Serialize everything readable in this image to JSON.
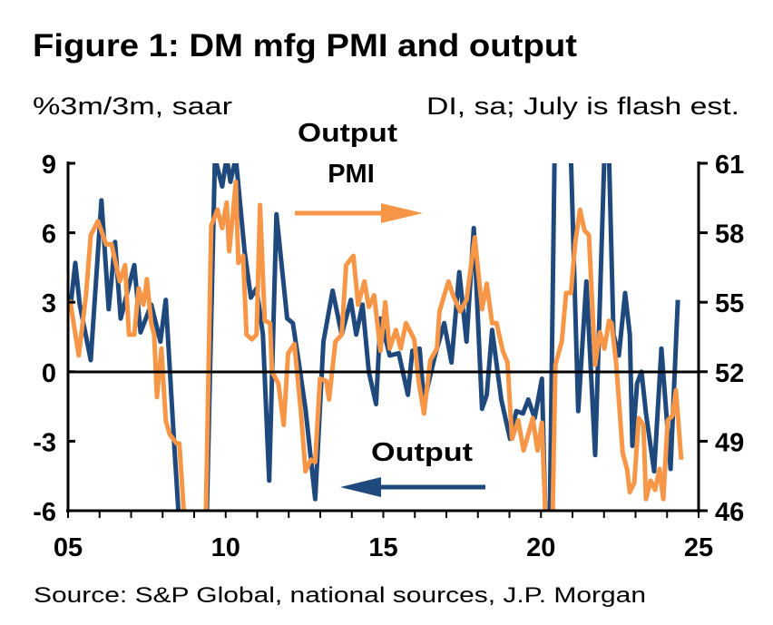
{
  "chart_data": {
    "type": "line",
    "title": "Figure 1: DM mfg PMI and output",
    "left_axis_label": "%3m/3m, saar",
    "right_axis_label": "DI, sa; July is flash est.",
    "source": "Source: S&P Global, national sources, J.P. Morgan",
    "x_ticks": [
      "05",
      "10",
      "15",
      "20",
      "25"
    ],
    "xlim": [
      2005,
      2025
    ],
    "left_ticks": [
      "9",
      "6",
      "3",
      "0",
      "-3",
      "-6"
    ],
    "ylim_left": [
      -6,
      9
    ],
    "right_ticks": [
      "61",
      "58",
      "55",
      "52",
      "49",
      "46"
    ],
    "ylim_right": [
      46,
      61
    ],
    "grid": false,
    "colors": {
      "output": "#1F497D",
      "pmi": "#F79646"
    },
    "annotations": {
      "pmi_label_line1": "Output",
      "pmi_label_line2": "PMI",
      "pmi_arrow": "right (right axis)",
      "output_label": "Output",
      "output_arrow": "left (left axis)"
    },
    "series": [
      {
        "name": "Output",
        "axis": "left",
        "points": [
          [
            2005.06,
            2.6
          ],
          [
            2005.23,
            4.7
          ],
          [
            2005.37,
            2.9
          ],
          [
            2005.72,
            0.5
          ],
          [
            2006.06,
            7.4
          ],
          [
            2006.29,
            2.7
          ],
          [
            2006.49,
            5.6
          ],
          [
            2006.67,
            2.3
          ],
          [
            2007.1,
            4.6
          ],
          [
            2007.3,
            1.7
          ],
          [
            2007.64,
            2.9
          ],
          [
            2007.93,
            1.3
          ],
          [
            2008.1,
            3.1
          ],
          [
            2008.36,
            -3.0
          ],
          [
            2008.51,
            -6.3
          ],
          [
            2008.8,
            -10
          ],
          [
            2009.2,
            -10
          ],
          [
            2009.4,
            -6.3
          ],
          [
            2009.66,
            9.5
          ],
          [
            2009.89,
            8.0
          ],
          [
            2010.03,
            10
          ],
          [
            2010.15,
            8.2
          ],
          [
            2010.32,
            9.5
          ],
          [
            2010.6,
            5.2
          ],
          [
            2010.8,
            3.2
          ],
          [
            2010.98,
            3.6
          ],
          [
            2011.18,
            1.6
          ],
          [
            2011.38,
            -4.7
          ],
          [
            2011.61,
            6.8
          ],
          [
            2011.95,
            2.3
          ],
          [
            2012.13,
            2.1
          ],
          [
            2012.33,
            0.3
          ],
          [
            2012.53,
            -1.6
          ],
          [
            2012.84,
            -5.5
          ],
          [
            2013.1,
            1.3
          ],
          [
            2013.39,
            3.5
          ],
          [
            2013.68,
            1.6
          ],
          [
            2013.97,
            3.1
          ],
          [
            2014.14,
            1.6
          ],
          [
            2014.34,
            2.9
          ],
          [
            2014.54,
            0.0
          ],
          [
            2014.77,
            -1.4
          ],
          [
            2014.91,
            2.3
          ],
          [
            2015.2,
            0.7
          ],
          [
            2015.49,
            0.8
          ],
          [
            2015.78,
            -1.0
          ],
          [
            2015.92,
            0.9
          ],
          [
            2016.15,
            1.0
          ],
          [
            2016.29,
            -1.3
          ],
          [
            2016.64,
            0.7
          ],
          [
            2016.93,
            2.1
          ],
          [
            2017.16,
            0.4
          ],
          [
            2017.41,
            4.3
          ],
          [
            2017.64,
            1.3
          ],
          [
            2017.87,
            6.2
          ],
          [
            2018.13,
            -1.6
          ],
          [
            2018.28,
            -1.0
          ],
          [
            2018.45,
            1.8
          ],
          [
            2018.74,
            -1.2
          ],
          [
            2019.02,
            -2.9
          ],
          [
            2019.22,
            -1.7
          ],
          [
            2019.43,
            -1.8
          ],
          [
            2019.6,
            -1.2
          ],
          [
            2019.8,
            -2.0
          ],
          [
            2020.03,
            -0.3
          ],
          [
            2020.14,
            -6.5
          ],
          [
            2020.28,
            -15
          ],
          [
            2020.43,
            15
          ],
          [
            2020.95,
            10
          ],
          [
            2021.18,
            -1.7
          ],
          [
            2021.44,
            3.9
          ],
          [
            2021.72,
            -3.6
          ],
          [
            2022.01,
            10
          ],
          [
            2022.16,
            9.5
          ],
          [
            2022.3,
            1.6
          ],
          [
            2022.47,
            0.7
          ],
          [
            2022.67,
            3.4
          ],
          [
            2022.82,
            1.6
          ],
          [
            2022.9,
            -3.2
          ],
          [
            2023.05,
            -0.5
          ],
          [
            2023.19,
            0.0
          ],
          [
            2023.33,
            -1.8
          ],
          [
            2023.59,
            -4.3
          ],
          [
            2023.82,
            1.0
          ],
          [
            2024.11,
            -4.2
          ],
          [
            2024.34,
            3.1
          ]
        ]
      },
      {
        "name": "PMI",
        "axis": "right",
        "points": [
          [
            2005.06,
            55.1
          ],
          [
            2005.34,
            52.7
          ],
          [
            2005.57,
            55.3
          ],
          [
            2005.72,
            57.9
          ],
          [
            2005.95,
            58.5
          ],
          [
            2006.21,
            57.5
          ],
          [
            2006.38,
            57.5
          ],
          [
            2006.64,
            55.9
          ],
          [
            2006.81,
            56.6
          ],
          [
            2006.93,
            53.6
          ],
          [
            2007.1,
            53.6
          ],
          [
            2007.24,
            55.6
          ],
          [
            2007.39,
            54.9
          ],
          [
            2007.5,
            56.0
          ],
          [
            2007.64,
            54.1
          ],
          [
            2007.73,
            53.6
          ],
          [
            2007.82,
            50.9
          ],
          [
            2007.96,
            53.0
          ],
          [
            2008.1,
            49.9
          ],
          [
            2008.22,
            49.3
          ],
          [
            2008.45,
            48.9
          ],
          [
            2008.53,
            48.9
          ],
          [
            2008.68,
            45.8
          ],
          [
            2008.9,
            40
          ],
          [
            2009.1,
            38
          ],
          [
            2009.37,
            45.8
          ],
          [
            2009.54,
            58.3
          ],
          [
            2009.74,
            59.0
          ],
          [
            2009.89,
            58.2
          ],
          [
            2010.03,
            59.3
          ],
          [
            2010.11,
            57.2
          ],
          [
            2010.23,
            58.8
          ],
          [
            2010.32,
            60.2
          ],
          [
            2010.4,
            56.7
          ],
          [
            2010.55,
            57.0
          ],
          [
            2010.66,
            53.6
          ],
          [
            2010.83,
            53.4
          ],
          [
            2010.98,
            53.6
          ],
          [
            2011.09,
            59.2
          ],
          [
            2011.24,
            54.2
          ],
          [
            2011.41,
            54.1
          ],
          [
            2011.47,
            52.0
          ],
          [
            2011.67,
            51.5
          ],
          [
            2011.84,
            49.7
          ],
          [
            2011.98,
            52.8
          ],
          [
            2012.18,
            53.2
          ],
          [
            2012.39,
            50.2
          ],
          [
            2012.53,
            47.7
          ],
          [
            2012.7,
            48.2
          ],
          [
            2012.84,
            48.1
          ],
          [
            2012.99,
            51.7
          ],
          [
            2013.19,
            51.6
          ],
          [
            2013.28,
            50.8
          ],
          [
            2013.48,
            53.3
          ],
          [
            2013.68,
            53.6
          ],
          [
            2013.82,
            56.6
          ],
          [
            2014.05,
            57.0
          ],
          [
            2014.2,
            54.9
          ],
          [
            2014.4,
            55.9
          ],
          [
            2014.54,
            54.8
          ],
          [
            2014.71,
            55.3
          ],
          [
            2014.91,
            52.9
          ],
          [
            2015.06,
            55.0
          ],
          [
            2015.2,
            53.0
          ],
          [
            2015.4,
            53.8
          ],
          [
            2015.55,
            53.0
          ],
          [
            2015.72,
            54.1
          ],
          [
            2015.98,
            53.4
          ],
          [
            2016.12,
            51.6
          ],
          [
            2016.29,
            50.2
          ],
          [
            2016.49,
            52.5
          ],
          [
            2016.7,
            53.0
          ],
          [
            2016.78,
            54.6
          ],
          [
            2016.93,
            55.3
          ],
          [
            2017.07,
            55.9
          ],
          [
            2017.21,
            55.3
          ],
          [
            2017.44,
            54.6
          ],
          [
            2017.64,
            55.1
          ],
          [
            2017.9,
            57.8
          ],
          [
            2018.13,
            54.7
          ],
          [
            2018.28,
            55.8
          ],
          [
            2018.45,
            54.1
          ],
          [
            2018.59,
            54.1
          ],
          [
            2018.79,
            52.9
          ],
          [
            2018.94,
            52.4
          ],
          [
            2019.08,
            49.1
          ],
          [
            2019.28,
            49.9
          ],
          [
            2019.45,
            48.6
          ],
          [
            2019.6,
            49.3
          ],
          [
            2019.74,
            50.0
          ],
          [
            2019.89,
            48.6
          ],
          [
            2020.03,
            49.8
          ],
          [
            2020.14,
            45.8
          ],
          [
            2020.28,
            40
          ],
          [
            2020.37,
            45.8
          ],
          [
            2020.46,
            52.3
          ],
          [
            2020.66,
            53.3
          ],
          [
            2020.8,
            55.4
          ],
          [
            2020.95,
            55.4
          ],
          [
            2021.09,
            57.6
          ],
          [
            2021.24,
            59.0
          ],
          [
            2021.38,
            58.1
          ],
          [
            2021.52,
            57.9
          ],
          [
            2021.72,
            52.3
          ],
          [
            2021.87,
            53.7
          ],
          [
            2022.01,
            53.0
          ],
          [
            2022.16,
            54.2
          ],
          [
            2022.24,
            54.1
          ],
          [
            2022.39,
            52.3
          ],
          [
            2022.59,
            48.5
          ],
          [
            2022.73,
            47.8
          ],
          [
            2022.82,
            46.8
          ],
          [
            2022.96,
            47.2
          ],
          [
            2023.1,
            50.0
          ],
          [
            2023.25,
            49.7
          ],
          [
            2023.33,
            46.5
          ],
          [
            2023.48,
            47.3
          ],
          [
            2023.62,
            46.9
          ],
          [
            2023.76,
            47.8
          ],
          [
            2023.88,
            46.5
          ],
          [
            2024.02,
            49.9
          ],
          [
            2024.17,
            50.1
          ],
          [
            2024.28,
            51.2
          ],
          [
            2024.45,
            48.2
          ]
        ]
      }
    ]
  }
}
